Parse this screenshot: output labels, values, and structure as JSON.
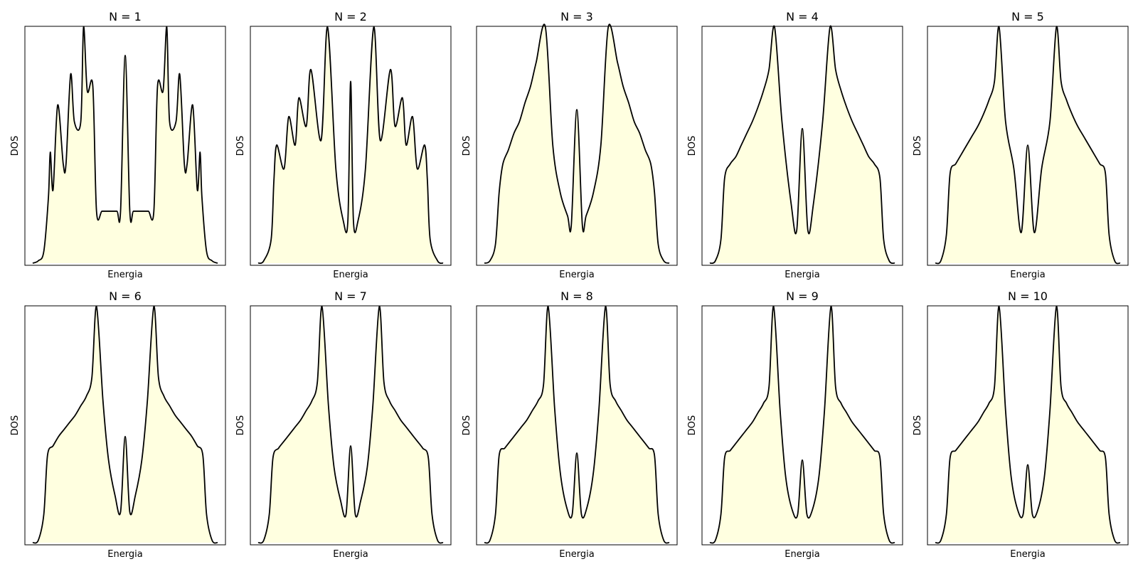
{
  "figure": {
    "background": "#ffffff",
    "fill_color": "#ffffe0",
    "line_color": "#000000"
  },
  "chart_data": [
    {
      "type": "area",
      "title": "N = 1",
      "xlabel": "Energia",
      "ylabel": "DOS",
      "x_ticks": "none",
      "y_ticks": "none",
      "grid": false,
      "legend": "none",
      "series": [
        {
          "x": [
            0.0,
            0.03,
            0.06,
            0.085,
            0.095,
            0.11,
            0.135,
            0.165,
            0.18,
            0.205,
            0.225,
            0.26,
            0.275,
            0.295,
            0.325,
            0.345,
            0.375,
            0.415,
            0.455,
            0.475,
            0.5,
            0.525,
            0.545,
            0.585,
            0.625,
            0.655,
            0.675,
            0.705,
            0.725,
            0.74,
            0.775,
            0.795,
            0.82,
            0.835,
            0.865,
            0.89,
            0.905,
            0.915,
            0.94,
            0.97,
            1.0
          ],
          "y": [
            0.0,
            0.01,
            0.05,
            0.28,
            0.47,
            0.31,
            0.67,
            0.42,
            0.42,
            0.8,
            0.6,
            0.6,
            1.0,
            0.73,
            0.75,
            0.22,
            0.22,
            0.22,
            0.22,
            0.22,
            0.88,
            0.22,
            0.22,
            0.22,
            0.22,
            0.22,
            0.75,
            0.73,
            1.0,
            0.6,
            0.6,
            0.8,
            0.42,
            0.42,
            0.67,
            0.31,
            0.47,
            0.28,
            0.05,
            0.01,
            0.0
          ]
        }
      ]
    },
    {
      "type": "area",
      "title": "N = 2",
      "xlabel": "Energia",
      "ylabel": "DOS",
      "x_ticks": "none",
      "y_ticks": "none",
      "grid": false,
      "legend": "none",
      "series": [
        {
          "x": [
            0.0,
            0.03,
            0.07,
            0.085,
            0.1,
            0.14,
            0.165,
            0.2,
            0.22,
            0.26,
            0.285,
            0.34,
            0.375,
            0.42,
            0.46,
            0.485,
            0.5,
            0.515,
            0.54,
            0.58,
            0.625,
            0.66,
            0.715,
            0.74,
            0.78,
            0.8,
            0.835,
            0.86,
            0.9,
            0.915,
            0.93,
            0.97,
            1.0
          ],
          "y": [
            0.0,
            0.01,
            0.1,
            0.35,
            0.5,
            0.4,
            0.62,
            0.5,
            0.7,
            0.58,
            0.82,
            0.52,
            1.0,
            0.4,
            0.18,
            0.18,
            0.77,
            0.18,
            0.18,
            0.4,
            1.0,
            0.52,
            0.82,
            0.58,
            0.7,
            0.5,
            0.62,
            0.4,
            0.5,
            0.35,
            0.1,
            0.01,
            0.0
          ]
        }
      ]
    },
    {
      "type": "area",
      "title": "N = 3",
      "xlabel": "Energia",
      "ylabel": "DOS",
      "x_ticks": "none",
      "y_ticks": "none",
      "grid": false,
      "legend": "none",
      "series": [
        {
          "x": [
            0.0,
            0.03,
            0.06,
            0.08,
            0.1,
            0.13,
            0.16,
            0.19,
            0.22,
            0.25,
            0.28,
            0.33,
            0.37,
            0.41,
            0.45,
            0.47,
            0.5,
            0.53,
            0.55,
            0.59,
            0.63,
            0.67,
            0.72,
            0.75,
            0.78,
            0.81,
            0.84,
            0.87,
            0.9,
            0.92,
            0.94,
            0.97,
            1.0
          ],
          "y": [
            0.0,
            0.01,
            0.08,
            0.3,
            0.42,
            0.48,
            0.55,
            0.6,
            0.68,
            0.75,
            0.85,
            1.0,
            0.5,
            0.3,
            0.2,
            0.16,
            0.65,
            0.16,
            0.2,
            0.3,
            0.5,
            1.0,
            0.85,
            0.75,
            0.68,
            0.6,
            0.55,
            0.48,
            0.42,
            0.3,
            0.08,
            0.01,
            0.0
          ]
        }
      ]
    },
    {
      "type": "area",
      "title": "N = 4",
      "xlabel": "Energia",
      "ylabel": "DOS",
      "x_ticks": "none",
      "y_ticks": "none",
      "grid": false,
      "legend": "none",
      "series": [
        {
          "x": [
            0.0,
            0.03,
            0.06,
            0.08,
            0.11,
            0.14,
            0.17,
            0.2,
            0.23,
            0.26,
            0.29,
            0.32,
            0.35,
            0.39,
            0.44,
            0.47,
            0.5,
            0.53,
            0.56,
            0.61,
            0.65,
            0.68,
            0.71,
            0.74,
            0.77,
            0.8,
            0.83,
            0.86,
            0.89,
            0.92,
            0.94,
            0.97,
            1.0
          ],
          "y": [
            0.0,
            0.01,
            0.1,
            0.36,
            0.42,
            0.45,
            0.5,
            0.55,
            0.6,
            0.66,
            0.73,
            0.82,
            1.0,
            0.6,
            0.25,
            0.14,
            0.57,
            0.14,
            0.25,
            0.6,
            1.0,
            0.82,
            0.73,
            0.66,
            0.6,
            0.55,
            0.5,
            0.45,
            0.42,
            0.36,
            0.1,
            0.01,
            0.0
          ]
        }
      ]
    },
    {
      "type": "area",
      "title": "N = 5",
      "xlabel": "Energia",
      "ylabel": "DOS",
      "x_ticks": "none",
      "y_ticks": "none",
      "grid": false,
      "legend": "none",
      "series": [
        {
          "x": [
            0.0,
            0.03,
            0.06,
            0.08,
            0.11,
            0.14,
            0.17,
            0.2,
            0.23,
            0.26,
            0.29,
            0.32,
            0.345,
            0.38,
            0.425,
            0.465,
            0.5,
            0.535,
            0.575,
            0.62,
            0.655,
            0.68,
            0.71,
            0.74,
            0.77,
            0.8,
            0.83,
            0.86,
            0.89,
            0.92,
            0.94,
            0.97,
            1.0
          ],
          "y": [
            0.0,
            0.01,
            0.12,
            0.38,
            0.42,
            0.46,
            0.5,
            0.54,
            0.58,
            0.63,
            0.69,
            0.77,
            1.0,
            0.6,
            0.4,
            0.13,
            0.5,
            0.13,
            0.4,
            0.6,
            1.0,
            0.77,
            0.69,
            0.63,
            0.58,
            0.54,
            0.5,
            0.46,
            0.42,
            0.38,
            0.12,
            0.01,
            0.0
          ]
        }
      ]
    },
    {
      "type": "area",
      "title": "N = 6",
      "xlabel": "Energia",
      "ylabel": "DOS",
      "x_ticks": "none",
      "y_ticks": "none",
      "grid": false,
      "legend": "none",
      "series": [
        {
          "x": [
            0.0,
            0.03,
            0.06,
            0.08,
            0.11,
            0.14,
            0.17,
            0.2,
            0.23,
            0.26,
            0.29,
            0.32,
            0.345,
            0.38,
            0.41,
            0.445,
            0.475,
            0.5,
            0.525,
            0.555,
            0.59,
            0.62,
            0.655,
            0.68,
            0.71,
            0.74,
            0.77,
            0.8,
            0.83,
            0.86,
            0.89,
            0.92,
            0.94,
            0.97,
            1.0
          ],
          "y": [
            0.0,
            0.01,
            0.12,
            0.37,
            0.41,
            0.45,
            0.48,
            0.51,
            0.54,
            0.58,
            0.62,
            0.7,
            1.0,
            0.6,
            0.35,
            0.2,
            0.13,
            0.45,
            0.13,
            0.2,
            0.35,
            0.6,
            1.0,
            0.7,
            0.62,
            0.58,
            0.54,
            0.51,
            0.48,
            0.45,
            0.41,
            0.37,
            0.12,
            0.01,
            0.0
          ]
        }
      ]
    },
    {
      "type": "area",
      "title": "N = 7",
      "xlabel": "Energia",
      "ylabel": "DOS",
      "x_ticks": "none",
      "y_ticks": "none",
      "grid": false,
      "legend": "none",
      "series": [
        {
          "x": [
            0.0,
            0.03,
            0.06,
            0.08,
            0.11,
            0.14,
            0.17,
            0.2,
            0.23,
            0.26,
            0.29,
            0.32,
            0.345,
            0.38,
            0.41,
            0.445,
            0.475,
            0.5,
            0.525,
            0.555,
            0.59,
            0.62,
            0.655,
            0.68,
            0.71,
            0.74,
            0.77,
            0.8,
            0.83,
            0.86,
            0.89,
            0.92,
            0.94,
            0.97,
            1.0
          ],
          "y": [
            0.0,
            0.01,
            0.12,
            0.36,
            0.4,
            0.43,
            0.46,
            0.49,
            0.52,
            0.56,
            0.6,
            0.68,
            1.0,
            0.58,
            0.32,
            0.18,
            0.12,
            0.41,
            0.12,
            0.18,
            0.32,
            0.58,
            1.0,
            0.68,
            0.6,
            0.56,
            0.52,
            0.49,
            0.46,
            0.43,
            0.4,
            0.36,
            0.12,
            0.01,
            0.0
          ]
        }
      ]
    },
    {
      "type": "area",
      "title": "N = 8",
      "xlabel": "Energia",
      "ylabel": "DOS",
      "x_ticks": "none",
      "y_ticks": "none",
      "grid": false,
      "legend": "none",
      "series": [
        {
          "x": [
            0.0,
            0.03,
            0.06,
            0.08,
            0.11,
            0.14,
            0.17,
            0.2,
            0.23,
            0.26,
            0.29,
            0.32,
            0.345,
            0.38,
            0.41,
            0.445,
            0.475,
            0.5,
            0.525,
            0.555,
            0.59,
            0.62,
            0.655,
            0.68,
            0.71,
            0.74,
            0.77,
            0.8,
            0.83,
            0.86,
            0.89,
            0.92,
            0.94,
            0.97,
            1.0
          ],
          "y": [
            0.0,
            0.01,
            0.12,
            0.37,
            0.4,
            0.43,
            0.46,
            0.49,
            0.52,
            0.56,
            0.6,
            0.67,
            1.0,
            0.57,
            0.3,
            0.15,
            0.12,
            0.38,
            0.12,
            0.15,
            0.3,
            0.57,
            1.0,
            0.67,
            0.6,
            0.56,
            0.52,
            0.49,
            0.46,
            0.43,
            0.4,
            0.37,
            0.12,
            0.01,
            0.0
          ]
        }
      ]
    },
    {
      "type": "area",
      "title": "N = 9",
      "xlabel": "Energia",
      "ylabel": "DOS",
      "x_ticks": "none",
      "y_ticks": "none",
      "grid": false,
      "legend": "none",
      "series": [
        {
          "x": [
            0.0,
            0.03,
            0.06,
            0.08,
            0.11,
            0.14,
            0.17,
            0.2,
            0.23,
            0.26,
            0.29,
            0.32,
            0.345,
            0.38,
            0.41,
            0.445,
            0.475,
            0.5,
            0.525,
            0.555,
            0.59,
            0.62,
            0.655,
            0.68,
            0.71,
            0.74,
            0.77,
            0.8,
            0.83,
            0.86,
            0.89,
            0.92,
            0.94,
            0.97,
            1.0
          ],
          "y": [
            0.0,
            0.01,
            0.12,
            0.36,
            0.39,
            0.42,
            0.45,
            0.48,
            0.51,
            0.55,
            0.59,
            0.66,
            1.0,
            0.56,
            0.28,
            0.14,
            0.12,
            0.35,
            0.12,
            0.14,
            0.28,
            0.56,
            1.0,
            0.66,
            0.59,
            0.55,
            0.51,
            0.48,
            0.45,
            0.42,
            0.39,
            0.36,
            0.12,
            0.01,
            0.0
          ]
        }
      ]
    },
    {
      "type": "area",
      "title": "N = 10",
      "xlabel": "Energia",
      "ylabel": "DOS",
      "x_ticks": "none",
      "y_ticks": "none",
      "grid": false,
      "legend": "none",
      "series": [
        {
          "x": [
            0.0,
            0.03,
            0.06,
            0.08,
            0.11,
            0.14,
            0.17,
            0.2,
            0.23,
            0.26,
            0.29,
            0.32,
            0.345,
            0.38,
            0.41,
            0.445,
            0.475,
            0.5,
            0.525,
            0.555,
            0.59,
            0.62,
            0.655,
            0.68,
            0.71,
            0.74,
            0.77,
            0.8,
            0.83,
            0.86,
            0.89,
            0.92,
            0.94,
            0.97,
            1.0
          ],
          "y": [
            0.0,
            0.01,
            0.12,
            0.36,
            0.39,
            0.42,
            0.45,
            0.48,
            0.51,
            0.55,
            0.59,
            0.66,
            1.0,
            0.56,
            0.28,
            0.14,
            0.12,
            0.33,
            0.12,
            0.14,
            0.28,
            0.56,
            1.0,
            0.66,
            0.59,
            0.55,
            0.51,
            0.48,
            0.45,
            0.42,
            0.39,
            0.36,
            0.12,
            0.01,
            0.0
          ]
        }
      ]
    }
  ]
}
